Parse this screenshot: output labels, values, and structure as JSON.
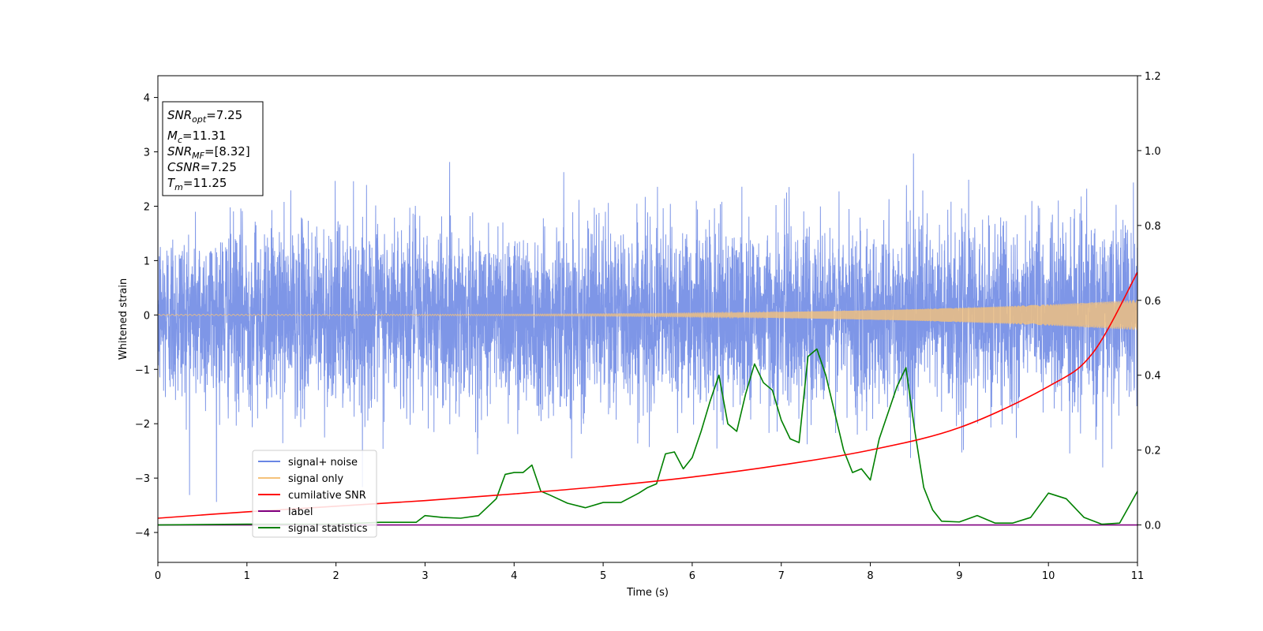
{
  "chart_data": {
    "type": "line",
    "xlabel": "Time (s)",
    "ylabel": "Whitened strain",
    "xlim": [
      0,
      11
    ],
    "ylim_left": [
      -4.55,
      4.4
    ],
    "ylim_right": [
      -0.1,
      1.2
    ],
    "x_ticks": [
      "0",
      "1",
      "2",
      "3",
      "4",
      "5",
      "6",
      "7",
      "8",
      "9",
      "10",
      "11"
    ],
    "y_ticks_left": [
      "−4",
      "−3",
      "−2",
      "−1",
      "0",
      "1",
      "2",
      "3",
      "4"
    ],
    "y_ticks_right": [
      "0.0",
      "0.2",
      "0.4",
      "0.6",
      "0.8",
      "1.0",
      "1.2"
    ],
    "grid": false,
    "legend_position": "lower-left",
    "legend": [
      {
        "label": "signal+ noise",
        "color": "#6a86e4"
      },
      {
        "label": "signal only",
        "color": "#f5c27a"
      },
      {
        "label": "cumilative SNR",
        "color": "#ff0000"
      },
      {
        "label": "label",
        "color": "#800080"
      },
      {
        "label": "signal statistics",
        "color": "#008000"
      }
    ],
    "stats_box": [
      {
        "main": "SNR",
        "sub": "opt",
        "rest": "=7.25"
      },
      {
        "main": "M",
        "sub": "c",
        "rest": "=11.31"
      },
      {
        "main": "SNR",
        "sub": "MF",
        "rest": "=[8.32]"
      },
      {
        "main": "CSNR",
        "sub": "",
        "rest": "=7.25"
      },
      {
        "main": "T",
        "sub": "m",
        "rest": "=11.25"
      }
    ],
    "series": [
      {
        "name": "signal+ noise",
        "axis": "left",
        "color": "#7790e6",
        "noise_sigma": 0.82,
        "duration": 11
      },
      {
        "name": "signal only",
        "axis": "left",
        "color": "#f5c27a",
        "amplitude_start": 0.012,
        "amplitude_end": 0.28,
        "tm": 11.25
      },
      {
        "name": "cumilative SNR",
        "axis": "right",
        "color": "#ff0000",
        "x": [
          0,
          1,
          2,
          3,
          4,
          5,
          6,
          7,
          8,
          9,
          10,
          10.5,
          11
        ],
        "y": [
          0.018,
          0.035,
          0.05,
          0.065,
          0.083,
          0.103,
          0.128,
          0.16,
          0.2,
          0.26,
          0.37,
          0.46,
          0.675
        ]
      },
      {
        "name": "label",
        "axis": "right",
        "color": "#800080",
        "x": [
          0,
          11
        ],
        "y": [
          0.0,
          0.0
        ]
      },
      {
        "name": "signal statistics",
        "axis": "right",
        "color": "#008000",
        "x": [
          0,
          1,
          2,
          2.5,
          2.9,
          3.0,
          3.2,
          3.4,
          3.6,
          3.8,
          3.9,
          4.0,
          4.1,
          4.2,
          4.3,
          4.4,
          4.6,
          4.8,
          5.0,
          5.2,
          5.4,
          5.5,
          5.6,
          5.7,
          5.8,
          5.9,
          6.0,
          6.1,
          6.2,
          6.3,
          6.4,
          6.5,
          6.6,
          6.7,
          6.8,
          6.9,
          7.0,
          7.1,
          7.2,
          7.3,
          7.4,
          7.5,
          7.6,
          7.7,
          7.8,
          7.9,
          8.0,
          8.1,
          8.2,
          8.3,
          8.4,
          8.5,
          8.6,
          8.7,
          8.8,
          9.0,
          9.2,
          9.4,
          9.6,
          9.8,
          10.0,
          10.2,
          10.4,
          10.6,
          10.8,
          11.0
        ],
        "y": [
          0.0,
          0.002,
          0.002,
          0.007,
          0.007,
          0.025,
          0.02,
          0.018,
          0.025,
          0.07,
          0.135,
          0.14,
          0.14,
          0.16,
          0.09,
          0.08,
          0.058,
          0.046,
          0.06,
          0.06,
          0.085,
          0.1,
          0.11,
          0.19,
          0.195,
          0.15,
          0.18,
          0.25,
          0.33,
          0.4,
          0.27,
          0.25,
          0.35,
          0.43,
          0.38,
          0.36,
          0.28,
          0.23,
          0.22,
          0.45,
          0.47,
          0.4,
          0.3,
          0.2,
          0.14,
          0.15,
          0.12,
          0.23,
          0.3,
          0.37,
          0.42,
          0.25,
          0.1,
          0.04,
          0.01,
          0.008,
          0.025,
          0.005,
          0.005,
          0.02,
          0.085,
          0.07,
          0.02,
          0.002,
          0.005,
          0.09
        ]
      }
    ]
  }
}
